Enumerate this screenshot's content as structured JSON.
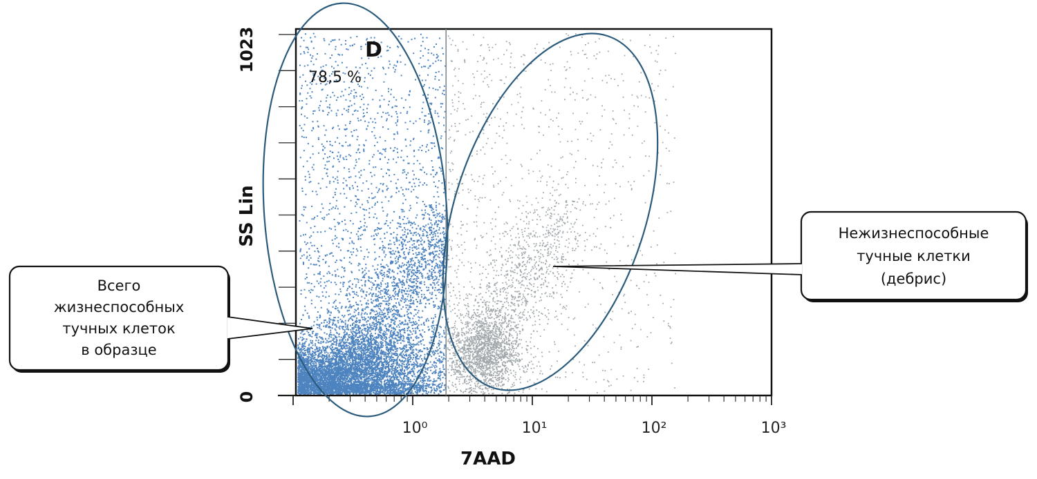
{
  "chart_data": {
    "type": "scatter",
    "title": "",
    "xlabel": "7AAD",
    "ylabel": "SS Lin",
    "x_scale": "log",
    "xlim": [
      0.1,
      1000
    ],
    "ylim": [
      0,
      1023
    ],
    "x_tick_labels": [
      "10⁰",
      "10¹",
      "10²",
      "10³"
    ],
    "x_tick_values": [
      1,
      10,
      100,
      1000
    ],
    "y_tick_labels": [
      "0",
      "1023"
    ],
    "y_tick_values": [
      0,
      1023
    ],
    "gate_threshold_x": 1.9,
    "gate": {
      "name": "D",
      "percent": "78,5 %"
    },
    "series": [
      {
        "color": "#2e6db4",
        "approx_n": 9000,
        "x_range": [
          0.1,
          1.9
        ],
        "y_range": [
          0,
          1023
        ]
      },
      {
        "color": "#6f7a80",
        "approx_n": 3500,
        "x_range": [
          1.9,
          400
        ],
        "y_range": [
          0,
          1023
        ],
        "densest_at": {
          "x": 4,
          "y": 120
        }
      }
    ],
    "annotations": [
      {
        "id": "viable",
        "lines": [
          "Всего",
          "жизнеспособных",
          "тучных клеток",
          "в образце"
        ]
      },
      {
        "id": "nonviable",
        "lines": [
          "Нежизнеспособные",
          "тучные клетки",
          "(дебрис)"
        ]
      }
    ]
  }
}
